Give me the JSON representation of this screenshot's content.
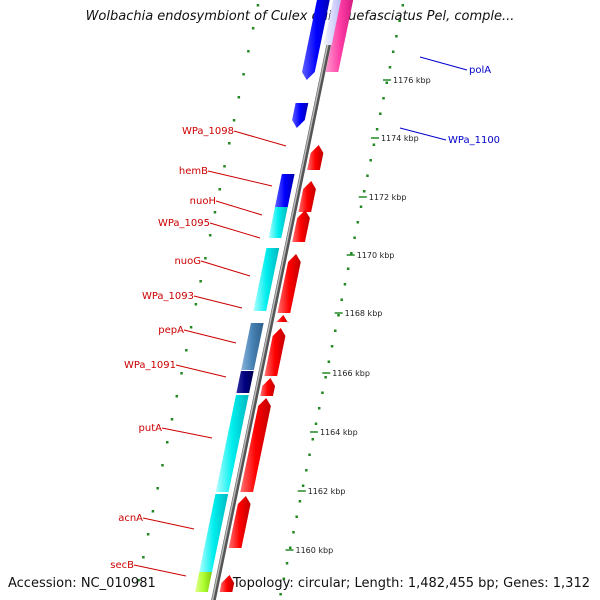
{
  "title": "Wolbachia endosymbiont of Culex quinquefasciatus Pel, comple...",
  "footer": {
    "accession": "Accession: NC_010981",
    "topology": "Topology: circular; Length: 1,482,455 bp; Genes: 1,312"
  },
  "colors": {
    "forward_cds": "#ff0000",
    "reverse_cds": "#00e5ee",
    "blue": "#0000ff",
    "steel": "#4682b4",
    "navy": "#000080",
    "pink": "#ff3ea5",
    "lime": "#adff2f",
    "label_left": "#cc0000",
    "label_right": "#0000cc",
    "tick_green": "#008800",
    "backbone": "#888888"
  },
  "scale_ticks": [
    "1160 kbp",
    "1162 kbp",
    "1164 kbp",
    "1166 kbp",
    "1168 kbp",
    "1170 kbp",
    "1172 kbp",
    "1174 kbp",
    "1176 kbp"
  ],
  "left_labels": [
    "WPa_1098",
    "hemB",
    "nuoH",
    "WPa_1095",
    "nuoG",
    "WPa_1093",
    "pepA",
    "WPa_1091",
    "putA",
    "acnA",
    "secB"
  ],
  "right_labels": [
    "polA",
    "WPa_1100"
  ]
}
